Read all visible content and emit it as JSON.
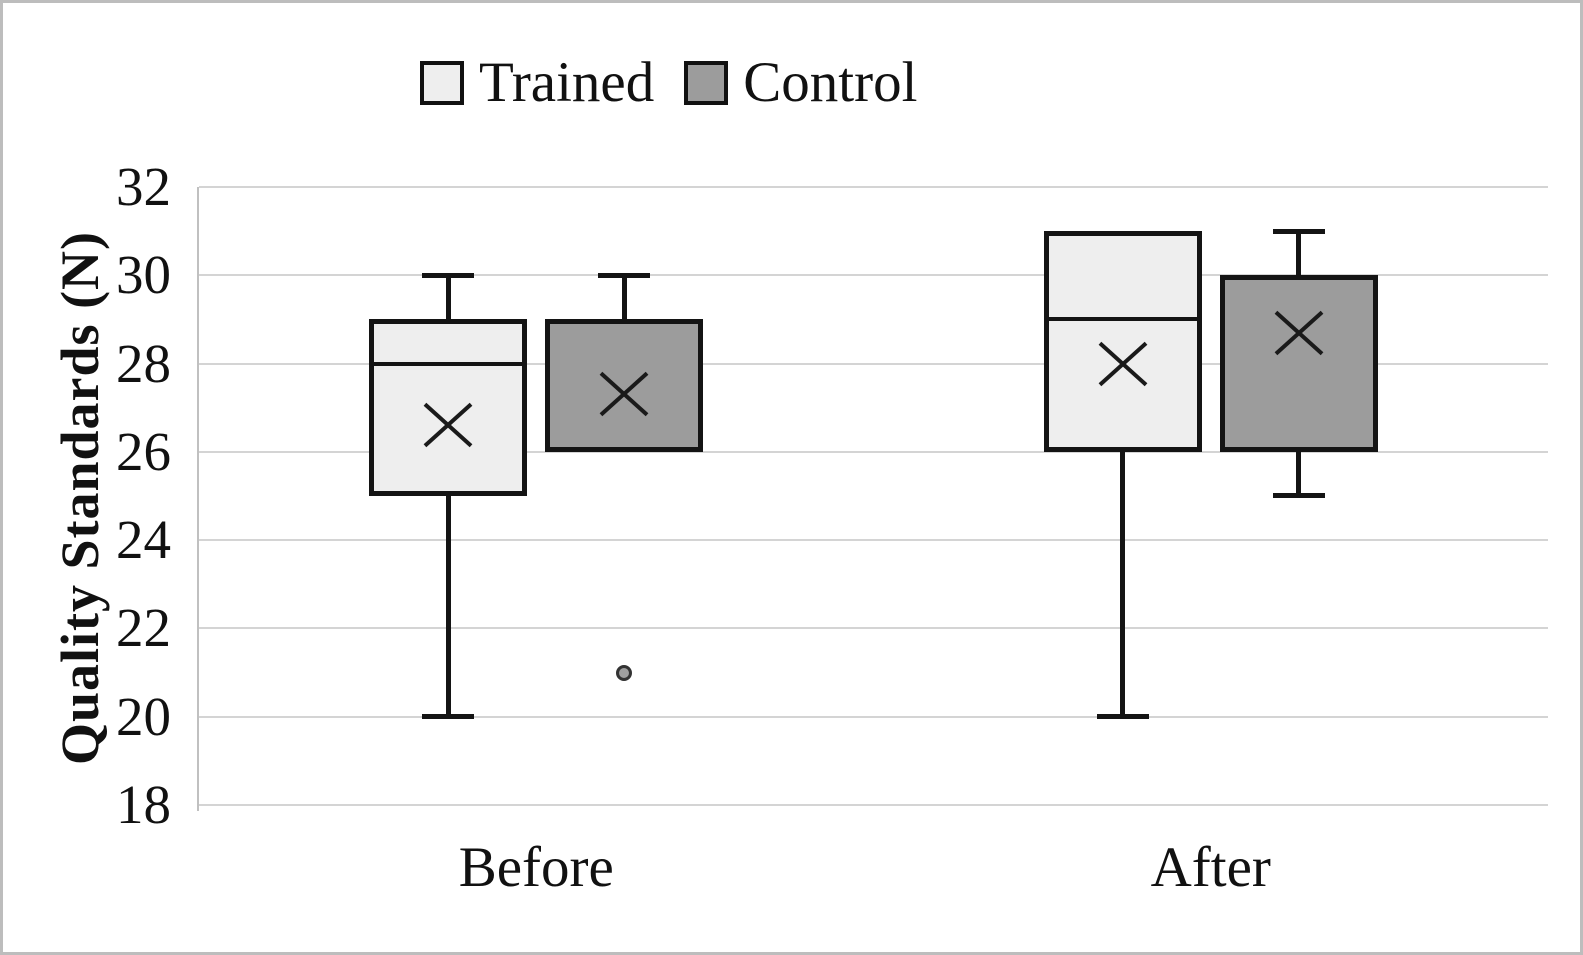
{
  "figure": {
    "background": "#ffffff",
    "frame_color": "#bdbdbd"
  },
  "legend": {
    "position": "top",
    "items": [
      {
        "label": "Trained",
        "swatch_color": "#eeeeee"
      },
      {
        "label": "Control",
        "swatch_color": "#9c9c9c"
      }
    ]
  },
  "chart_data": {
    "type": "boxplot",
    "title": "",
    "ylabel": "Quality Standards (N)",
    "xlabel": "",
    "ylim": [
      18,
      32
    ],
    "yticks": [
      32,
      30,
      28,
      26,
      24,
      22,
      20,
      18
    ],
    "grid": true,
    "gridline_color": "#d4d4d4",
    "line_color": "#141414",
    "categories": [
      "Before",
      "After"
    ],
    "series": [
      {
        "name": "Trained",
        "fill_color": "#eeeeee",
        "points": [
          {
            "category": "Before",
            "min": 20,
            "q1": 25,
            "median": 28,
            "q3": 29,
            "max": 30,
            "mean": 26.6,
            "outliers": []
          },
          {
            "category": "After",
            "min": 20,
            "q1": 26,
            "median": 29,
            "q3": 31,
            "max": 31,
            "mean": 28.0,
            "outliers": []
          }
        ]
      },
      {
        "name": "Control",
        "fill_color": "#9c9c9c",
        "points": [
          {
            "category": "Before",
            "min": 26,
            "q1": 26,
            "median": null,
            "q3": 29,
            "max": 30,
            "mean": 27.3,
            "outliers": [
              21
            ]
          },
          {
            "category": "After",
            "min": 25,
            "q1": 26,
            "median": null,
            "q3": 30,
            "max": 31,
            "mean": 28.7,
            "outliers": []
          }
        ]
      }
    ]
  }
}
